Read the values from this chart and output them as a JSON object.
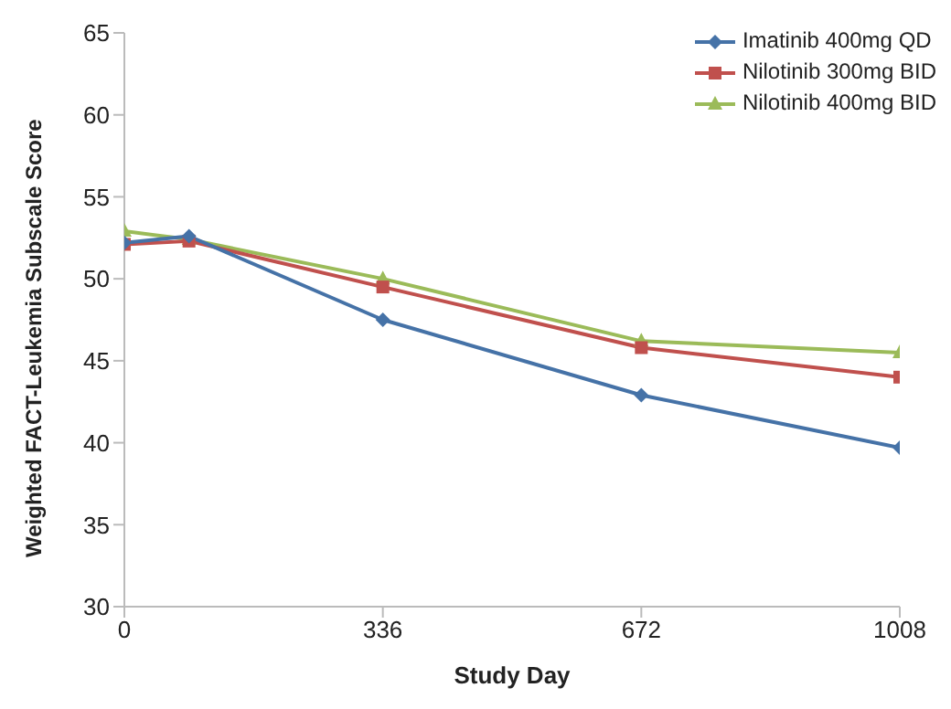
{
  "chart_data": {
    "type": "line",
    "xlabel": "Study Day",
    "ylabel": "Weighted FACT-Leukemia Subscale Score",
    "x": [
      0,
      84,
      336,
      672,
      1008
    ],
    "xlim": [
      0,
      1008
    ],
    "xticks": [
      0,
      336,
      672,
      1008
    ],
    "ylim": [
      30,
      65
    ],
    "yticks": [
      30,
      35,
      40,
      45,
      50,
      55,
      60,
      65
    ],
    "grid": false,
    "legend": "top right",
    "series": [
      {
        "name": "Imatinib 400mg QD",
        "color": "#4572a7",
        "marker": "diamond",
        "values": [
          52.2,
          52.6,
          47.5,
          42.9,
          39.7
        ]
      },
      {
        "name": "Nilotinib 300mg BID",
        "color": "#c0504d",
        "marker": "square",
        "values": [
          52.1,
          52.3,
          49.5,
          45.8,
          44.0
        ]
      },
      {
        "name": "Nilotinib 400mg BID",
        "color": "#9bbb59",
        "marker": "triangle",
        "values": [
          52.9,
          52.4,
          50.0,
          46.2,
          45.5
        ]
      }
    ]
  }
}
